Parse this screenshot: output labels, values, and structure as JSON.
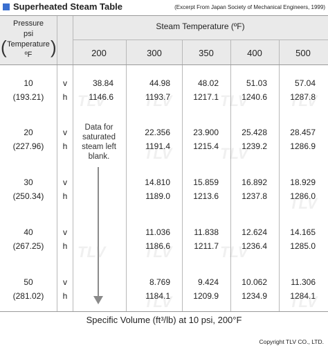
{
  "title": "Superheated Steam Table",
  "source": "(Excerpt From Japan Society of Mechanical Engineers, 1999)",
  "accent_color": "#3a6fd0",
  "header": {
    "pressure_line1": "Pressure",
    "pressure_line2": "psi",
    "pressure_line3": "Temperature",
    "pressure_line4": "ºF",
    "steam_temperature": "Steam Temperature (ºF)",
    "temperatures": [
      "200",
      "300",
      "350",
      "400",
      "500"
    ]
  },
  "rows": [
    {
      "pressure": "10",
      "sat_temp": "(193.21)",
      "v_label": "v",
      "h_label": "h",
      "v": [
        "38.84",
        "44.98",
        "48.02",
        "51.03",
        "57.04"
      ],
      "h": [
        "1146.6",
        "1193.7",
        "1217.1",
        "1240.6",
        "1287.8"
      ]
    },
    {
      "pressure": "20",
      "sat_temp": "(227.96)",
      "v_label": "v",
      "h_label": "h",
      "v": [
        "",
        "22.356",
        "23.900",
        "25.428",
        "28.457"
      ],
      "h": [
        "",
        "1191.4",
        "1215.4",
        "1239.2",
        "1286.9"
      ]
    },
    {
      "pressure": "30",
      "sat_temp": "(250.34)",
      "v_label": "v",
      "h_label": "h",
      "v": [
        "",
        "14.810",
        "15.859",
        "16.892",
        "18.929"
      ],
      "h": [
        "",
        "1189.0",
        "1213.6",
        "1237.8",
        "1286.0"
      ]
    },
    {
      "pressure": "40",
      "sat_temp": "(267.25)",
      "v_label": "v",
      "h_label": "h",
      "v": [
        "",
        "11.036",
        "11.838",
        "12.624",
        "14.165"
      ],
      "h": [
        "",
        "1186.6",
        "1211.7",
        "1236.4",
        "1285.0"
      ]
    },
    {
      "pressure": "50",
      "sat_temp": "(281.02)",
      "v_label": "v",
      "h_label": "h",
      "v": [
        "",
        "8.769",
        "9.424",
        "10.062",
        "11.306"
      ],
      "h": [
        "",
        "1184.1",
        "1209.9",
        "1234.9",
        "1284.1"
      ]
    }
  ],
  "note": {
    "line1": "Data for",
    "line2": "saturated",
    "line3": "steam left",
    "line4": "blank."
  },
  "watermark": "TLV",
  "caption": "Specific Volume (ft³/lb) at 10 psi, 200°F",
  "copyright": "Copyright TLV CO., LTD."
}
